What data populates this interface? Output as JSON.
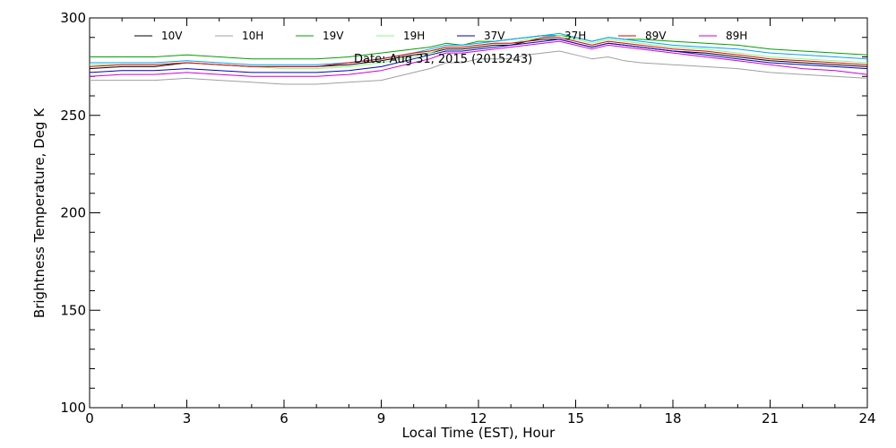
{
  "chart_data": {
    "type": "line",
    "title": "",
    "annotation": "Date: Aug 31, 2015 (2015243)",
    "xlabel": "Local Time (EST), Hour",
    "ylabel": "Brightness Temperature, Deg K",
    "xlim": [
      0,
      24
    ],
    "ylim": [
      100,
      300
    ],
    "xticks": [
      0,
      3,
      6,
      9,
      12,
      15,
      18,
      21,
      24
    ],
    "yticks": [
      100,
      150,
      200,
      250,
      300
    ],
    "grid": false,
    "legend_position": "top",
    "x": [
      0,
      1,
      2,
      3,
      4,
      5,
      6,
      7,
      8,
      9,
      10,
      10.5,
      11,
      11.5,
      12,
      12.5,
      13,
      13.5,
      14,
      14.5,
      15,
      15.5,
      16,
      16.5,
      17,
      18,
      19,
      20,
      21,
      22,
      23,
      24
    ],
    "series": [
      {
        "name": "10V",
        "color": "#000000",
        "values": [
          274,
          275,
          275,
          277,
          276,
          275,
          275,
          275,
          276,
          278,
          281,
          282,
          284,
          284,
          285,
          286,
          286,
          288,
          289,
          289,
          287,
          285,
          287,
          286,
          285,
          283,
          282,
          280,
          278,
          277,
          276,
          275
        ]
      },
      {
        "name": "10H",
        "color": "#a0a0a0",
        "values": [
          268,
          268,
          268,
          269,
          268,
          267,
          266,
          266,
          267,
          268,
          272,
          274,
          277,
          277,
          279,
          279,
          279,
          281,
          282,
          283,
          281,
          279,
          280,
          278,
          277,
          276,
          275,
          274,
          272,
          271,
          270,
          269
        ]
      },
      {
        "name": "19V",
        "color": "#00a000",
        "values": [
          280,
          280,
          280,
          281,
          280,
          279,
          279,
          279,
          280,
          282,
          284,
          285,
          287,
          286,
          288,
          288,
          289,
          290,
          291,
          291,
          290,
          288,
          290,
          289,
          289,
          288,
          287,
          286,
          284,
          283,
          282,
          281
        ]
      },
      {
        "name": "19H",
        "color": "#80ff80",
        "values": [
          276,
          276,
          276,
          277,
          276,
          275,
          274,
          274,
          275,
          277,
          280,
          282,
          285,
          285,
          286,
          287,
          287,
          289,
          290,
          291,
          289,
          287,
          289,
          288,
          287,
          285,
          284,
          282,
          280,
          279,
          278,
          277
        ]
      },
      {
        "name": "37V",
        "color": "#0000c0",
        "values": [
          272,
          273,
          273,
          274,
          273,
          272,
          272,
          272,
          273,
          275,
          279,
          281,
          283,
          283,
          284,
          285,
          286,
          287,
          288,
          289,
          287,
          285,
          287,
          286,
          285,
          283,
          281,
          279,
          277,
          276,
          275,
          274
        ]
      },
      {
        "name": "37H",
        "color": "#00a0ff",
        "values": [
          277,
          277,
          277,
          278,
          277,
          276,
          276,
          276,
          277,
          279,
          282,
          284,
          286,
          286,
          287,
          288,
          289,
          290,
          291,
          292,
          290,
          288,
          290,
          289,
          288,
          286,
          285,
          284,
          282,
          281,
          280,
          279
        ]
      },
      {
        "name": "89V",
        "color": "#e00000",
        "values": [
          275,
          276,
          276,
          277,
          276,
          275,
          275,
          275,
          277,
          279,
          282,
          283,
          285,
          285,
          286,
          287,
          287,
          288,
          290,
          290,
          288,
          286,
          288,
          287,
          286,
          284,
          283,
          281,
          279,
          278,
          277,
          276
        ]
      },
      {
        "name": "89H",
        "color": "#d000d0",
        "values": [
          270,
          271,
          271,
          272,
          271,
          270,
          270,
          270,
          271,
          273,
          277,
          279,
          282,
          282,
          283,
          284,
          285,
          286,
          287,
          288,
          286,
          284,
          286,
          285,
          284,
          282,
          280,
          278,
          276,
          274,
          273,
          271
        ]
      }
    ]
  }
}
